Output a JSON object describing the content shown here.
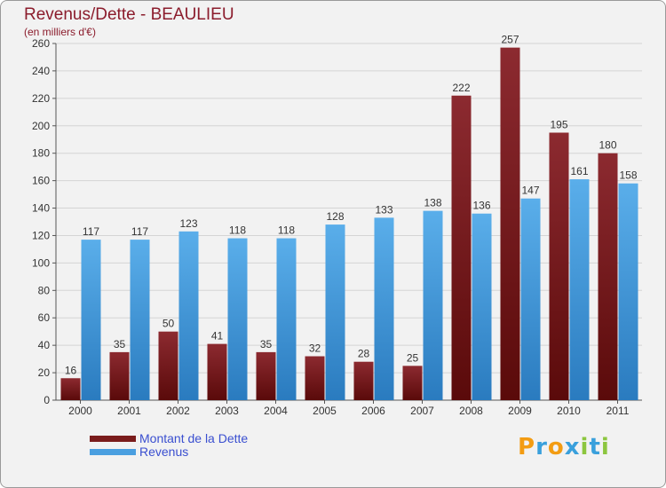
{
  "header": {
    "title": "Revenus/Dette - BEAULIEU",
    "subtitle": "(en milliers d'€)"
  },
  "colors": {
    "dette": "#7a1c1c",
    "revenus": "#4a9fe0",
    "title": "#8b1c2c",
    "legend_text": "#3a4fd0"
  },
  "chart_data": {
    "type": "bar",
    "title": "Revenus/Dette - BEAULIEU",
    "subtitle": "(en milliers d'€)",
    "categories": [
      "2000",
      "2001",
      "2002",
      "2003",
      "2004",
      "2005",
      "2006",
      "2007",
      "2008",
      "2009",
      "2010",
      "2011"
    ],
    "series": [
      {
        "name": "Montant de la Dette",
        "values": [
          16,
          35,
          50,
          41,
          35,
          32,
          28,
          25,
          222,
          257,
          195,
          180
        ]
      },
      {
        "name": "Revenus",
        "values": [
          117,
          117,
          123,
          118,
          118,
          128,
          133,
          138,
          136,
          147,
          161,
          158
        ]
      }
    ],
    "ylim": [
      0,
      260
    ],
    "yticks": [
      0,
      20,
      40,
      60,
      80,
      100,
      120,
      140,
      160,
      180,
      200,
      220,
      240,
      260
    ],
    "grid": true,
    "legend_position": "bottom-left"
  },
  "legend": {
    "items": [
      {
        "label": "Montant de la Dette",
        "color": "#7a1c1c"
      },
      {
        "label": "Revenus",
        "color": "#4a9fe0"
      }
    ]
  },
  "logo": {
    "letters": [
      "P",
      "r",
      "o",
      "x",
      "i",
      "t",
      "i"
    ],
    "colors": [
      "#f39c12",
      "#3aa0dc",
      "#f39c12",
      "#3aa0dc",
      "#8cc63f",
      "#3aa0dc",
      "#8cc63f"
    ]
  }
}
